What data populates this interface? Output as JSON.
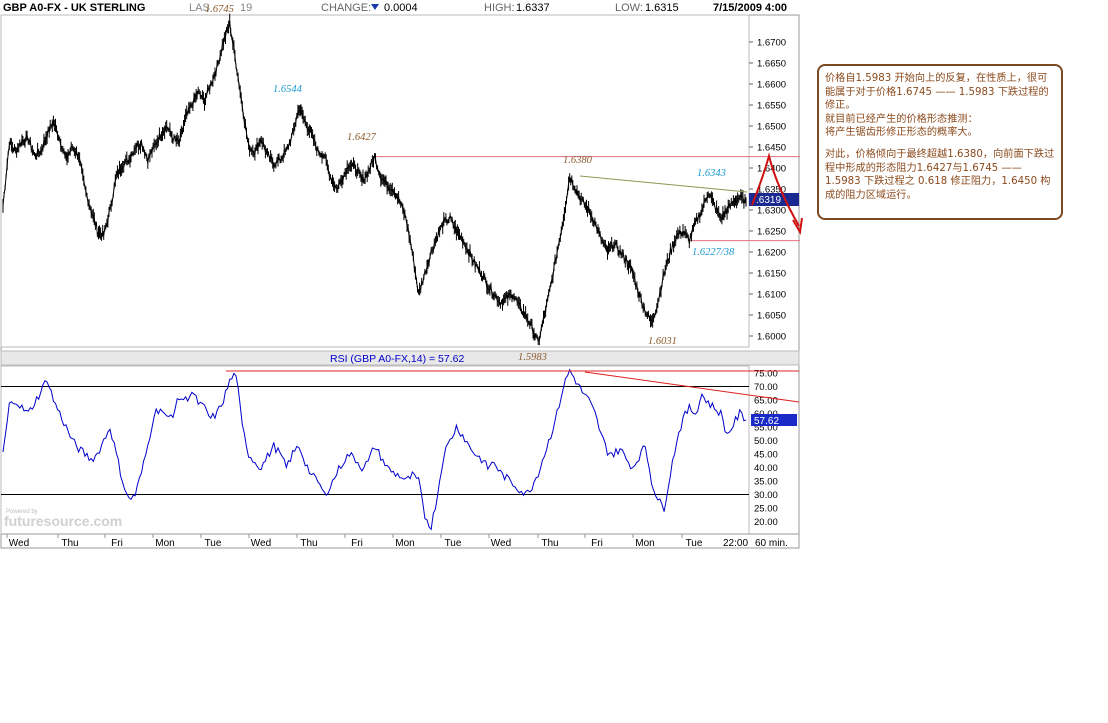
{
  "header": {
    "symbol": "GBP A0-FX - UK STERLING",
    "last_label": "LAS",
    "last_value_tail": "19",
    "change_label": "CHANGE:",
    "change_value": "0.0004",
    "high_label": "HIGH:",
    "high_value": "1.6337",
    "low_label": "LOW:",
    "low_value": "1.6315",
    "datetime": "7/15/2009 4:00"
  },
  "price_badge": ".6319",
  "rsi_title": "RSI (GBP A0-FX,14) = 57.62",
  "rsi_badge": "57.62",
  "watermark": "futuresource.com",
  "watermark_small": "Powered by",
  "interval_label": "60 min.",
  "last_time_label": "22:00",
  "colors": {
    "price": "#000000",
    "rsi": "#0000cc",
    "resistance": "#e07080",
    "trendline": "#8a9a50",
    "annotation_brown": "#8b5a2b",
    "annotation_blue": "#1a9ad0",
    "arrow": "#d01010"
  },
  "annotations": {
    "a1": "1.6745",
    "a2": "1.6544",
    "a3": "1.6427",
    "a4": "1.6380",
    "a5": "1.6343",
    "a6": "1.6227/38",
    "a7": "1.6031",
    "a8": "1.5983"
  },
  "note": {
    "p1": "价格自1.5983 开始向上的反复，在性质上，很可能属于对于价格1.6745 —— 1.5983 下跌过程的修正。",
    "p2": "就目前已经产生的价格形态推测：",
    "p3": "将产生锯齿形修正形态的概率大。",
    "p4": "对此，价格倾向于最终超越1.6380，向前面下跌过程中形成的形态阻力1.6427与1.6745 —— 1.5983 下跌过程之 0.618 修正阻力，1.6450 构成的阻力区域运行。"
  },
  "chart_data": [
    {
      "type": "line",
      "name": "price",
      "ylim": [
        1.596,
        1.678
      ],
      "yticks": [
        "1.6700",
        "1.6650",
        "1.6600",
        "1.6550",
        "1.6500",
        "1.6450",
        "1.6400",
        "1.6350",
        "1.6300",
        "1.6250",
        "1.6200",
        "1.6150",
        "1.6100",
        "1.6050",
        "1.6000"
      ],
      "x_labels": [
        "Wed",
        "Thu",
        "Fri",
        "Mon",
        "Tue",
        "Wed",
        "Thu",
        "Fri",
        "Mon",
        "Tue",
        "Wed",
        "Thu",
        "Fri",
        "Mon",
        "Tue"
      ],
      "values": [
        1.631,
        1.646,
        1.644,
        1.6465,
        1.647,
        1.643,
        1.644,
        1.648,
        1.651,
        1.647,
        1.642,
        1.645,
        1.643,
        1.635,
        1.63,
        1.625,
        1.624,
        1.63,
        1.638,
        1.641,
        1.642,
        1.645,
        1.646,
        1.642,
        1.645,
        1.648,
        1.65,
        1.647,
        1.646,
        1.652,
        1.655,
        1.658,
        1.656,
        1.66,
        1.664,
        1.67,
        1.6745,
        1.665,
        1.655,
        1.645,
        1.644,
        1.647,
        1.643,
        1.641,
        1.642,
        1.644,
        1.648,
        1.6544,
        1.651,
        1.648,
        1.644,
        1.643,
        1.638,
        1.635,
        1.638,
        1.641,
        1.64,
        1.637,
        1.639,
        1.6427,
        1.638,
        1.636,
        1.635,
        1.632,
        1.628,
        1.62,
        1.61,
        1.615,
        1.62,
        1.624,
        1.627,
        1.628,
        1.625,
        1.623,
        1.62,
        1.617,
        1.615,
        1.612,
        1.61,
        1.608,
        1.609,
        1.61,
        1.607,
        1.605,
        1.602,
        1.5983,
        1.605,
        1.612,
        1.62,
        1.628,
        1.638,
        1.635,
        1.632,
        1.63,
        1.627,
        1.623,
        1.62,
        1.622,
        1.62,
        1.618,
        1.615,
        1.61,
        1.606,
        1.6031,
        1.608,
        1.615,
        1.62,
        1.624,
        1.625,
        1.6227,
        1.627,
        1.63,
        1.6343,
        1.631,
        1.628,
        1.63,
        1.632,
        1.633,
        1.6319
      ]
    },
    {
      "type": "line",
      "name": "RSI (GBP A0-FX,14)",
      "ylim": [
        15,
        78
      ],
      "yticks": [
        "75.00",
        "70.00",
        "65.00",
        "60.00",
        "55.00",
        "50.00",
        "45.00",
        "40.00",
        "35.00",
        "30.00",
        "25.00",
        "20.00"
      ],
      "reference_lines": [
        70,
        30
      ],
      "values": [
        45,
        63,
        65,
        62,
        60,
        64,
        68,
        73,
        65,
        60,
        55,
        50,
        47,
        45,
        43,
        45,
        50,
        55,
        45,
        35,
        28,
        30,
        38,
        48,
        60,
        62,
        58,
        60,
        66,
        65,
        68,
        64,
        62,
        58,
        60,
        65,
        72,
        75,
        55,
        45,
        42,
        40,
        44,
        48,
        45,
        40,
        45,
        48,
        42,
        37,
        35,
        30,
        33,
        38,
        42,
        45,
        43,
        40,
        42,
        48,
        44,
        40,
        38,
        37,
        35,
        37,
        35,
        22,
        18,
        30,
        45,
        50,
        55,
        52,
        48,
        45,
        43,
        40,
        42,
        38,
        36,
        34,
        32,
        30,
        33,
        38,
        45,
        52,
        60,
        70,
        76,
        72,
        68,
        65,
        60,
        52,
        46,
        45,
        47,
        43,
        40,
        44,
        48,
        35,
        28,
        25,
        38,
        50,
        58,
        62,
        60,
        67,
        64,
        62,
        60,
        52,
        56,
        60,
        57.62
      ]
    }
  ]
}
